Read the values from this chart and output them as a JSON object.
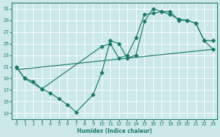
{
  "xlabel": "Humidex (Indice chaleur)",
  "bg_color": "#cce8e8",
  "grid_color": "#ffffff",
  "line_color": "#1a7a6a",
  "xlim": [
    -0.5,
    23.5
  ],
  "ylim": [
    12,
    32
  ],
  "xticks": [
    0,
    1,
    2,
    3,
    4,
    5,
    6,
    7,
    8,
    9,
    10,
    11,
    12,
    13,
    14,
    15,
    16,
    17,
    18,
    19,
    20,
    21,
    22,
    23
  ],
  "yticks": [
    13,
    15,
    17,
    19,
    21,
    23,
    25,
    27,
    29,
    31
  ],
  "line_zigzag": {
    "x": [
      0,
      1,
      2,
      3,
      4,
      5,
      6,
      7,
      9,
      10,
      11,
      12,
      13,
      14,
      15,
      16,
      17,
      18,
      19,
      20,
      21,
      22,
      23
    ],
    "y": [
      21,
      19,
      18.5,
      17.2,
      16.5,
      15.5,
      14.5,
      13.2,
      16.2,
      20.0,
      25.5,
      25.0,
      22.5,
      23.0,
      28.8,
      31.0,
      30.5,
      30.5,
      29.0,
      29.0,
      28.5,
      25.5,
      25.5
    ]
  },
  "line_upper": {
    "x": [
      0,
      1,
      3,
      10,
      11,
      12,
      13,
      14,
      15,
      16,
      17,
      18,
      19,
      20,
      21,
      22,
      23
    ],
    "y": [
      21,
      19,
      17.2,
      24.5,
      25.0,
      22.5,
      23.0,
      26.0,
      30.0,
      30.2,
      30.5,
      30.0,
      29.2,
      29.0,
      28.5,
      25.5,
      24.0
    ]
  },
  "line_straight": {
    "x": [
      0,
      23
    ],
    "y": [
      20.5,
      24.0
    ]
  }
}
